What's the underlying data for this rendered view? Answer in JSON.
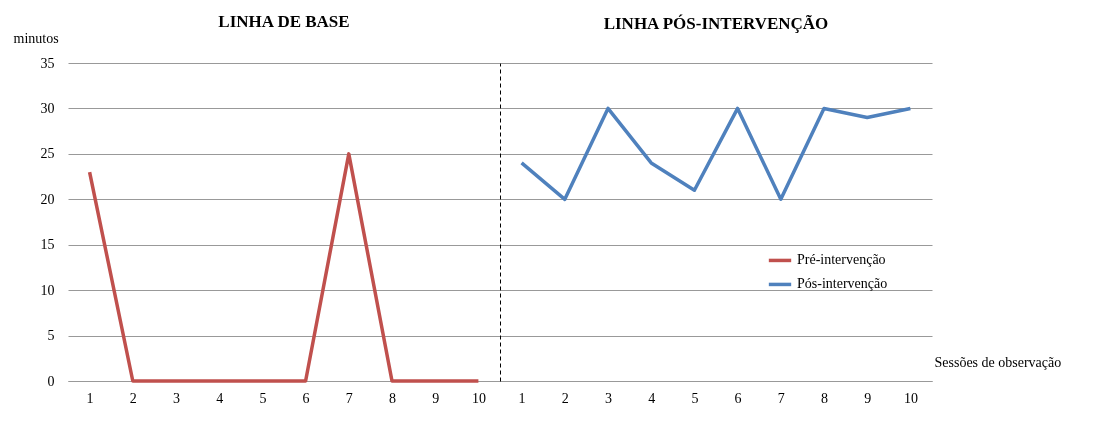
{
  "chart_data": [
    {
      "type": "line",
      "title": "LINHA DE BASE",
      "ylabel": "minutos",
      "categories": [
        "1",
        "2",
        "3",
        "4",
        "5",
        "6",
        "7",
        "8",
        "9",
        "10"
      ],
      "series": [
        {
          "name": "Pré-intervenção",
          "color": "#c0504d",
          "values": [
            23,
            0,
            0,
            0,
            0,
            0,
            25,
            0,
            0,
            0
          ]
        }
      ],
      "ylim": [
        0,
        35
      ],
      "yticks": [
        0,
        5,
        10,
        15,
        20,
        25,
        30,
        35
      ],
      "grid": "y"
    },
    {
      "type": "line",
      "title": "LINHA PÓS-INTERVENÇÃO",
      "xlabel": "Sessões de observação",
      "categories": [
        "1",
        "2",
        "3",
        "4",
        "5",
        "6",
        "7",
        "8",
        "9",
        "10"
      ],
      "series": [
        {
          "name": "Pós-intervenção",
          "color": "#4f81bd",
          "values": [
            24,
            20,
            30,
            24,
            21,
            30,
            20,
            30,
            29,
            30
          ]
        }
      ],
      "ylim": [
        0,
        35
      ],
      "yticks": [
        0,
        5,
        10,
        15,
        20,
        25,
        30,
        35
      ],
      "grid": "y",
      "tick_labels": "x",
      "legend": "right"
    }
  ]
}
